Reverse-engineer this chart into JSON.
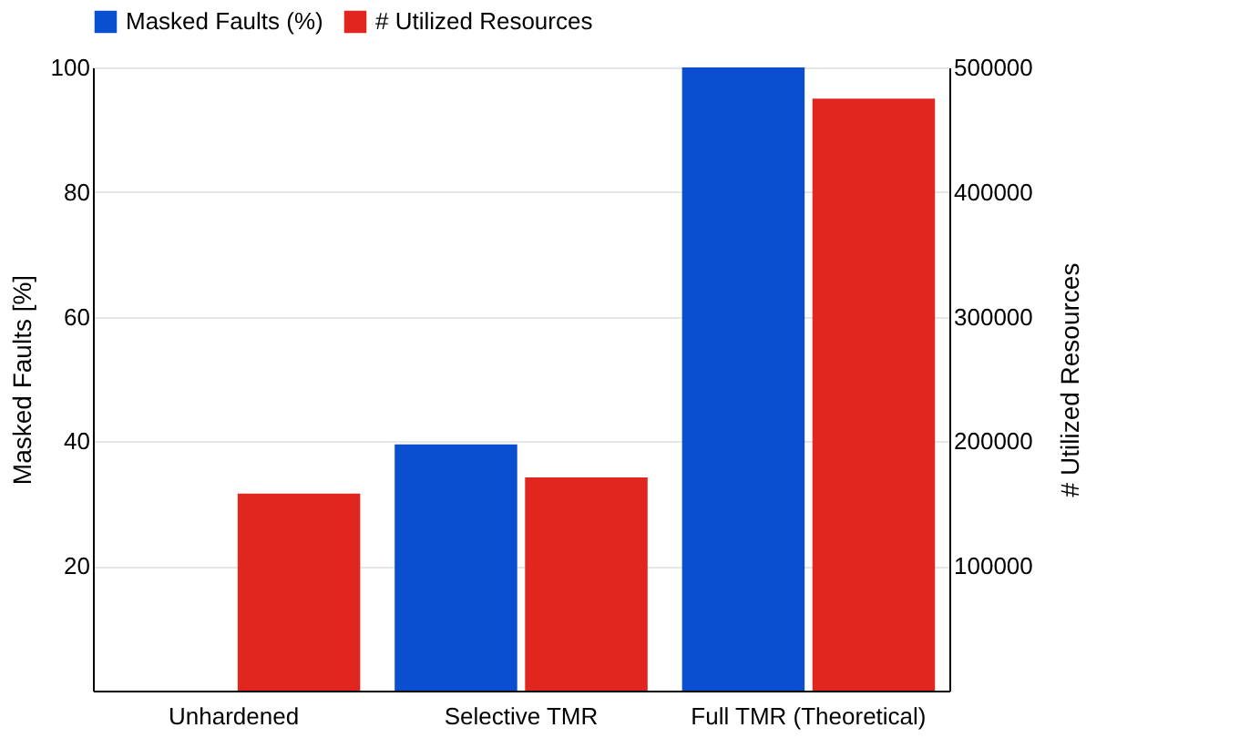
{
  "chart_data": {
    "type": "bar",
    "categories": [
      "Unhardened",
      "Selective TMR",
      "Full TMR (Theoretical)"
    ],
    "series": [
      {
        "name": "Masked Faults (%)",
        "color": "#0a4fd0",
        "values": [
          0,
          39.5,
          100
        ]
      },
      {
        "name": "# Utilized Resources",
        "color": "#e0261e",
        "values": [
          158000,
          171000,
          475000
        ],
        "axis": "y2"
      }
    ],
    "ylabel": "Masked Faults [%]",
    "y2label": "# Utilized Resources",
    "ylim": [
      0,
      100
    ],
    "yticks": [
      20,
      40,
      60,
      80,
      100
    ],
    "y2lim": [
      0,
      500000
    ],
    "y2ticks": [
      100000,
      200000,
      300000,
      400000,
      500000
    ],
    "grid": "y",
    "legend": "top"
  }
}
